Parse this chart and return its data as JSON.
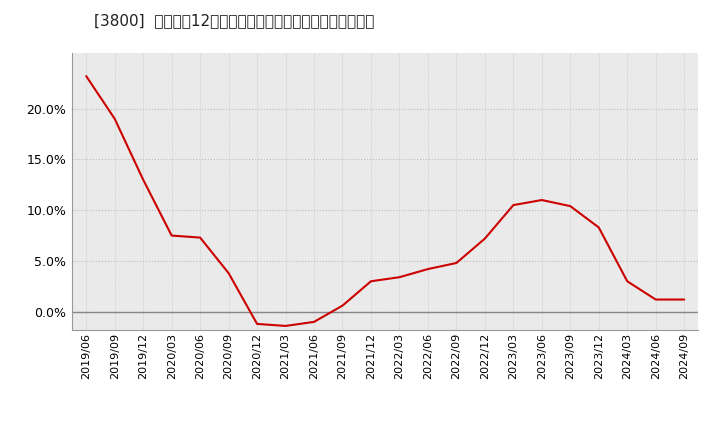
{
  "title": "[3800]  売上高の12か月移動合計の対前年同期増減率の推移",
  "line_color": "#cc0000",
  "background_color": "#ffffff",
  "plot_bg_color": "#eaeaea",
  "grid_color": "#bbbbbb",
  "zero_line_color": "#888888",
  "ylim": [
    -0.018,
    0.255
  ],
  "yticks": [
    0.0,
    0.05,
    0.1,
    0.15,
    0.2
  ],
  "dates": [
    "2019/06",
    "2019/09",
    "2019/12",
    "2020/03",
    "2020/06",
    "2020/09",
    "2020/12",
    "2021/03",
    "2021/06",
    "2021/09",
    "2021/12",
    "2022/03",
    "2022/06",
    "2022/09",
    "2022/12",
    "2023/03",
    "2023/06",
    "2023/09",
    "2023/12",
    "2024/03",
    "2024/06",
    "2024/09"
  ],
  "values": [
    0.232,
    0.19,
    0.13,
    0.075,
    0.073,
    0.038,
    -0.012,
    -0.014,
    -0.01,
    0.006,
    0.03,
    0.034,
    0.042,
    0.048,
    0.072,
    0.105,
    0.11,
    0.104,
    0.083,
    0.03,
    0.012,
    0.012
  ],
  "title_fontsize": 11,
  "tick_fontsize": 8,
  "ytick_fontsize": 9
}
